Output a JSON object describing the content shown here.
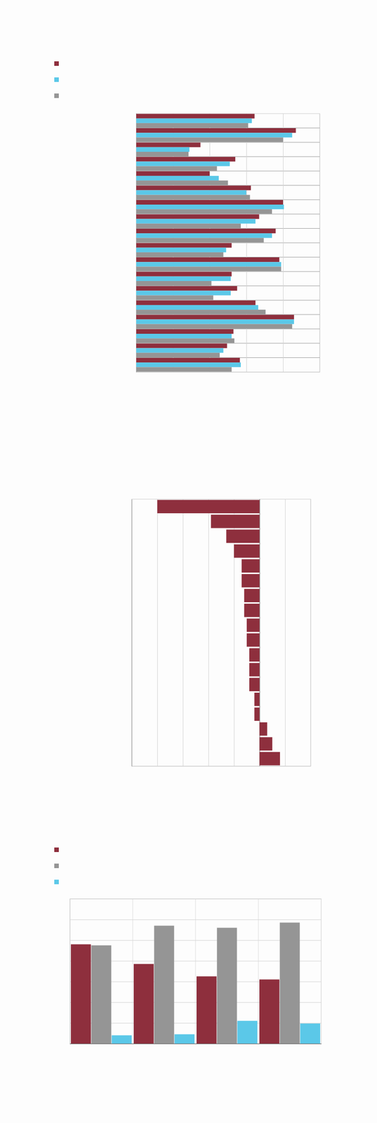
{
  "chart_data": [
    {
      "type": "bar",
      "orientation": "horizontal",
      "categories": [
        null,
        null,
        null,
        null,
        null,
        null,
        null,
        null,
        null,
        null,
        null,
        null,
        null,
        null,
        null,
        null,
        null,
        null
      ],
      "series": [
        {
          "color": "#8e2f3d",
          "values": [
            64.5,
            87,
            35,
            54,
            40,
            62.5,
            80,
            67,
            76,
            52,
            78,
            52,
            55,
            65,
            86,
            53,
            49.5,
            56.5
          ]
        },
        {
          "color": "#5bc8e8",
          "values": [
            63,
            85,
            29,
            51,
            45,
            60,
            80.5,
            65,
            74,
            49,
            79,
            51.5,
            51.5,
            66.5,
            86,
            52,
            47.5,
            57
          ]
        },
        {
          "color": "#959595",
          "values": [
            61,
            80,
            28.5,
            44,
            50,
            62,
            74,
            57,
            69.5,
            47.5,
            79,
            41,
            42,
            70.5,
            85,
            53.5,
            45.5,
            52
          ]
        }
      ],
      "xlim": [
        0,
        100
      ],
      "xticks": [
        0,
        20,
        40,
        60,
        80,
        100
      ],
      "grid": true,
      "legend": "top-left",
      "tick_labels": false
    },
    {
      "type": "bar",
      "orientation": "horizontal",
      "categories": [
        null,
        null,
        null,
        null,
        null,
        null,
        null,
        null,
        null,
        null,
        null,
        null,
        null,
        null,
        null,
        null,
        null,
        null
      ],
      "values": [
        -4.0,
        -1.9,
        -1.3,
        -1.0,
        -0.7,
        -0.7,
        -0.6,
        -0.6,
        -0.5,
        -0.5,
        -0.4,
        -0.4,
        -0.4,
        -0.2,
        -0.2,
        0.3,
        0.5,
        0.8
      ],
      "color": "#8e2f3d",
      "xlim": [
        -5,
        2
      ],
      "xticks": [
        -5,
        -4,
        -3,
        -2,
        -1,
        0,
        1,
        2
      ],
      "grid": true,
      "tick_labels": false
    },
    {
      "type": "bar",
      "categories": [
        null,
        null,
        null,
        null
      ],
      "series": [
        {
          "color": "#8e2f3d",
          "values": [
            48,
            38.5,
            32.5,
            31
          ]
        },
        {
          "color": "#959595",
          "values": [
            47.5,
            57,
            56,
            58.5
          ]
        },
        {
          "color": "#5bc8e8",
          "values": [
            4,
            4.5,
            11,
            9.7
          ]
        }
      ],
      "ylim": [
        0,
        70
      ],
      "yticks": [
        0,
        10,
        20,
        30,
        40,
        50,
        60,
        70
      ],
      "grid": true,
      "legend": "top-left",
      "tick_labels": false
    }
  ]
}
